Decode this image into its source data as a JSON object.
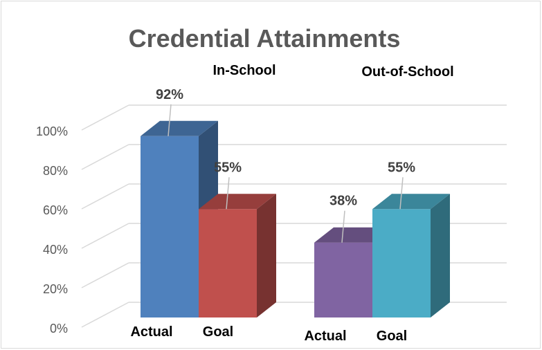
{
  "chart_data": {
    "type": "bar",
    "title": "Credential Attainments",
    "groups": [
      {
        "label": "In-School",
        "bars": [
          {
            "category": "Actual",
            "value": 92,
            "label": "92%",
            "color": "#4f81bd"
          },
          {
            "category": "Goal",
            "value": 55,
            "label": "55%",
            "color": "#c0504d"
          }
        ]
      },
      {
        "label": "Out-of-School",
        "bars": [
          {
            "category": "Actual",
            "value": 38,
            "label": "38%",
            "color": "#8064a2"
          },
          {
            "category": "Goal",
            "value": 55,
            "label": "55%",
            "color": "#4bacc6"
          }
        ]
      }
    ],
    "yticks": [
      "0%",
      "20%",
      "40%",
      "60%",
      "80%",
      "100%"
    ],
    "ylim": [
      0,
      100
    ],
    "grid": true,
    "three_d": true
  }
}
